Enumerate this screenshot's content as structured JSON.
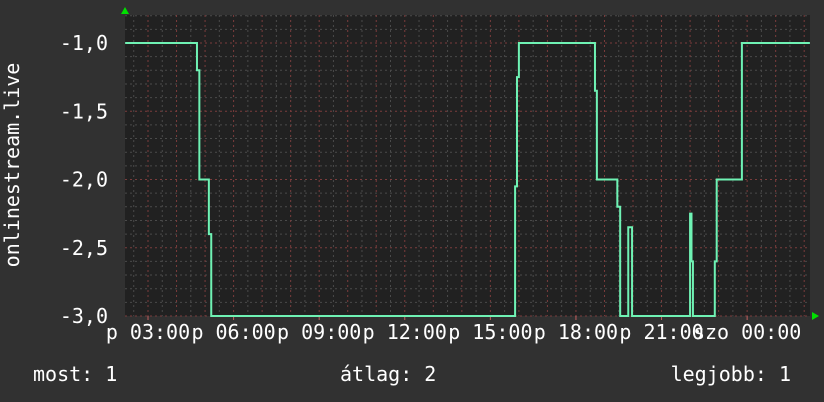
{
  "chart_data": {
    "type": "line",
    "step": true,
    "ylabel": "onlinestream.live",
    "xlabel": "",
    "ylim": [
      -3.0,
      -0.8
    ],
    "xlim": [
      {
        "day": "p",
        "time": "02:12"
      },
      {
        "day": "szo",
        "time": "02:15"
      }
    ],
    "yticks": [
      "-1,0",
      "-1,5",
      "-2,0",
      "-2,5",
      "-3,0"
    ],
    "ytick_values": [
      -1.0,
      -1.5,
      -2.0,
      -2.5,
      -3.0
    ],
    "xticks": [
      {
        "label": "p 03:00",
        "day": "p",
        "time": "03:00"
      },
      {
        "label": "p 06:00",
        "day": "p",
        "time": "06:00"
      },
      {
        "label": "p 09:00",
        "day": "p",
        "time": "09:00"
      },
      {
        "label": "p 12:00",
        "day": "p",
        "time": "12:00"
      },
      {
        "label": "p 15:00",
        "day": "p",
        "time": "15:00"
      },
      {
        "label": "p 18:00",
        "day": "p",
        "time": "18:00"
      },
      {
        "label": "p 21:00",
        "day": "p",
        "time": "21:00"
      },
      {
        "label": "szo 00:00",
        "day": "szo",
        "time": "00:00"
      }
    ],
    "grid": true,
    "colors": {
      "line": "#6ff2b4",
      "plot_bg": "#212121",
      "major_grid": "#7a3c3c",
      "minor_grid": "#4a4a4a",
      "arrow": "#00e000"
    },
    "series": [
      {
        "points": [
          [
            "p",
            "02:12",
            -1.0
          ],
          [
            "p",
            "04:43",
            -1.2
          ],
          [
            "p",
            "04:48",
            -2.0
          ],
          [
            "p",
            "05:08",
            -2.4
          ],
          [
            "p",
            "05:13",
            -3.0
          ],
          [
            "p",
            "15:52",
            -2.05
          ],
          [
            "p",
            "15:56",
            -1.25
          ],
          [
            "p",
            "16:00",
            -1.0
          ],
          [
            "p",
            "18:40",
            -1.35
          ],
          [
            "p",
            "18:44",
            -2.0
          ],
          [
            "p",
            "19:27",
            -2.2
          ],
          [
            "p",
            "19:33",
            -3.0
          ],
          [
            "p",
            "19:50",
            -2.35
          ],
          [
            "p",
            "19:58",
            -3.0
          ],
          [
            "p",
            "22:00",
            -2.25
          ],
          [
            "p",
            "22:03",
            -2.6
          ],
          [
            "p",
            "22:06",
            -3.0
          ],
          [
            "p",
            "22:52",
            -2.6
          ],
          [
            "p",
            "22:56",
            -2.0
          ],
          [
            "p",
            "23:49",
            -1.0
          ],
          [
            "szo",
            "02:12",
            -1.0
          ]
        ]
      }
    ]
  },
  "legend": {
    "current": "most: 1",
    "average": "átlag: 2",
    "max": "legjobb: 1"
  }
}
